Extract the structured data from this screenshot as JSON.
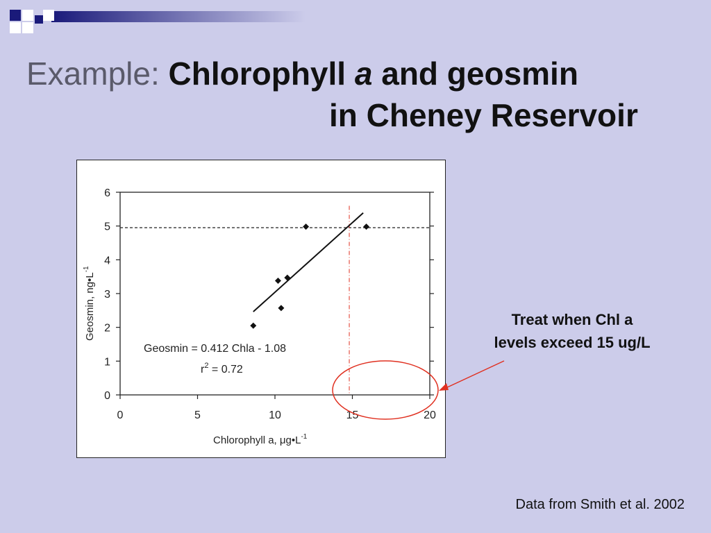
{
  "title": {
    "prefix": "Example:",
    "bold_part1": "Chlorophyll",
    "italic_part": "a",
    "bold_part2": "and geosmin",
    "line2": "in Cheney Reservoir"
  },
  "callout": {
    "line1": "Treat when Chl a",
    "line2": "levels exceed 15 ug/L"
  },
  "source": "Data from Smith et al. 2002",
  "colors": {
    "background": "#ccccea",
    "accent_navy": "#1a1a7a",
    "callout_red": "#e03020"
  },
  "chart_data": {
    "type": "scatter",
    "xlabel": "Chlorophyll a, μg•L",
    "xlabel_exp": "-1",
    "ylabel": "Geosmin, ng•L",
    "ylabel_exp": "-1",
    "xlim": [
      0,
      20
    ],
    "ylim": [
      0,
      6
    ],
    "xticks": [
      "0",
      "5",
      "10",
      "15",
      "20"
    ],
    "yticks": [
      "0",
      "1",
      "2",
      "3",
      "4",
      "5",
      "6"
    ],
    "points": [
      {
        "x": 8.6,
        "y": 2.05
      },
      {
        "x": 10.2,
        "y": 3.38
      },
      {
        "x": 10.4,
        "y": 2.57
      },
      {
        "x": 10.8,
        "y": 3.47
      },
      {
        "x": 12.0,
        "y": 4.98
      },
      {
        "x": 15.9,
        "y": 4.98
      }
    ],
    "regression": {
      "slope": 0.412,
      "intercept": -1.08,
      "x_start": 8.6,
      "x_end": 15.7
    },
    "threshold_y": 4.95,
    "marker_x": 14.8,
    "equation": "Geosmin = 0.412 Chla - 1.08",
    "r2_prefix": "r",
    "r2_exp": "2",
    "r2_value": " = 0.72",
    "grid": false
  }
}
